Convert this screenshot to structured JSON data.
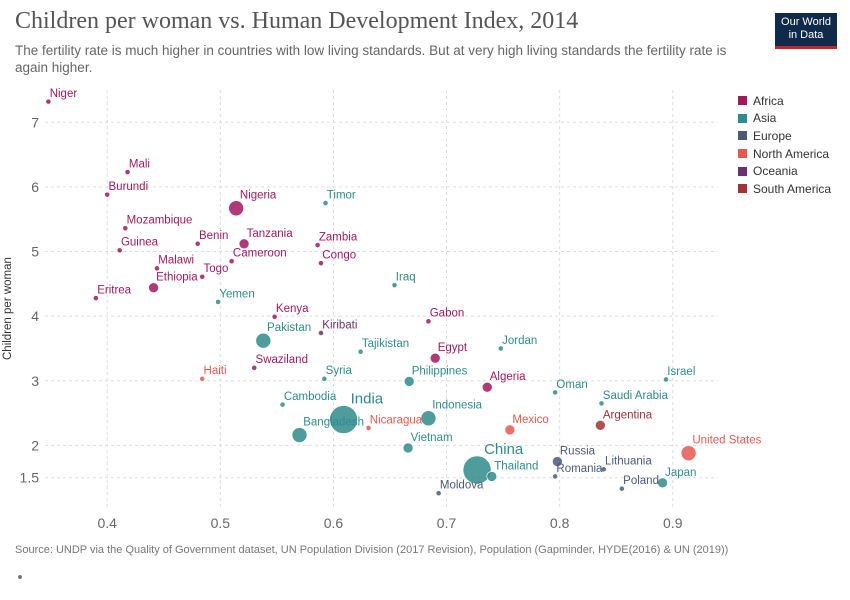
{
  "header": {
    "title": "Children per woman vs. Human Development Index, 2014",
    "subtitle": "The fertility rate is much higher in countries with low living standards. But at very high living standards the fertility rate is again higher.",
    "logo_line1": "Our World",
    "logo_line2": "in Data"
  },
  "footer": {
    "source": "Source: UNDP via the Quality of Government dataset, UN Population Division (2017 Revision), Population (Gapminder, HYDE(2016) & UN (2019))"
  },
  "colors": {
    "Africa": "#a2185f",
    "Asia": "#2f8b8b",
    "Europe": "#4c5a7a",
    "North America": "#e8574f",
    "Oceania": "#6d2f6e",
    "South America": "#a23236"
  },
  "chart_data": {
    "type": "scatter",
    "title": "Children per woman vs. Human Development Index, 2014",
    "ylabel": "Children per woman",
    "xlabel": "",
    "xlim": [
      0.345,
      0.94
    ],
    "ylim": [
      1.0,
      7.5
    ],
    "x_ticks": [
      "0.4",
      "0.5",
      "0.6",
      "0.7",
      "0.8",
      "0.9"
    ],
    "y_ticks": [
      "1.5",
      "2",
      "3",
      "4",
      "5",
      "6",
      "7"
    ],
    "legend": [
      "Africa",
      "Asia",
      "Europe",
      "North America",
      "Oceania",
      "South America"
    ],
    "legend_position": "right",
    "grid": true,
    "labeled_points": [
      {
        "name": "Niger",
        "x": 0.348,
        "y": 7.32,
        "region": "Africa",
        "size": "small"
      },
      {
        "name": "Mali",
        "x": 0.418,
        "y": 6.23,
        "region": "Africa",
        "size": "small"
      },
      {
        "name": "Burundi",
        "x": 0.4,
        "y": 5.88,
        "region": "Africa",
        "size": "small"
      },
      {
        "name": "Nigeria",
        "x": 0.514,
        "y": 5.67,
        "region": "Africa",
        "size": "large"
      },
      {
        "name": "Timor",
        "x": 0.593,
        "y": 5.75,
        "region": "Asia",
        "size": "small"
      },
      {
        "name": "Mozambique",
        "x": 0.416,
        "y": 5.36,
        "region": "Africa",
        "size": "small"
      },
      {
        "name": "Tanzania",
        "x": 0.521,
        "y": 5.12,
        "region": "Africa",
        "size": "medium"
      },
      {
        "name": "Zambia",
        "x": 0.586,
        "y": 5.1,
        "region": "Africa",
        "size": "small"
      },
      {
        "name": "Benin",
        "x": 0.48,
        "y": 5.12,
        "region": "Africa",
        "size": "small"
      },
      {
        "name": "Guinea",
        "x": 0.411,
        "y": 5.02,
        "region": "Africa",
        "size": "small"
      },
      {
        "name": "Cameroon",
        "x": 0.51,
        "y": 4.85,
        "region": "Africa",
        "size": "small"
      },
      {
        "name": "Congo",
        "x": 0.589,
        "y": 4.82,
        "region": "Africa",
        "size": "small"
      },
      {
        "name": "Malawi",
        "x": 0.444,
        "y": 4.74,
        "region": "Africa",
        "size": "small"
      },
      {
        "name": "Togo",
        "x": 0.484,
        "y": 4.61,
        "region": "Africa",
        "size": "small"
      },
      {
        "name": "Ethiopia",
        "x": 0.441,
        "y": 4.44,
        "region": "Africa",
        "size": "medium"
      },
      {
        "name": "Iraq",
        "x": 0.654,
        "y": 4.48,
        "region": "Asia",
        "size": "small"
      },
      {
        "name": "Eritrea",
        "x": 0.39,
        "y": 4.28,
        "region": "Africa",
        "size": "small"
      },
      {
        "name": "Yemen",
        "x": 0.498,
        "y": 4.22,
        "region": "Asia",
        "size": "small"
      },
      {
        "name": "Kenya",
        "x": 0.548,
        "y": 3.99,
        "region": "Africa",
        "size": "small"
      },
      {
        "name": "Gabon",
        "x": 0.684,
        "y": 3.92,
        "region": "Africa",
        "size": "small"
      },
      {
        "name": "Kiribati",
        "x": 0.589,
        "y": 3.74,
        "region": "Oceania",
        "size": "small"
      },
      {
        "name": "Pakistan",
        "x": 0.538,
        "y": 3.62,
        "region": "Asia",
        "size": "large"
      },
      {
        "name": "Jordan",
        "x": 0.748,
        "y": 3.5,
        "region": "Asia",
        "size": "small"
      },
      {
        "name": "Tajikistan",
        "x": 0.624,
        "y": 3.45,
        "region": "Asia",
        "size": "small"
      },
      {
        "name": "Egypt",
        "x": 0.69,
        "y": 3.35,
        "region": "Africa",
        "size": "medium"
      },
      {
        "name": "Haiti",
        "x": 0.484,
        "y": 3.03,
        "region": "North America",
        "size": "small"
      },
      {
        "name": "Swaziland",
        "x": 0.53,
        "y": 3.2,
        "region": "Africa",
        "size": "small"
      },
      {
        "name": "Syria",
        "x": 0.592,
        "y": 3.03,
        "region": "Asia",
        "size": "small"
      },
      {
        "name": "Philippines",
        "x": 0.667,
        "y": 2.99,
        "region": "Asia",
        "size": "medium"
      },
      {
        "name": "Algeria",
        "x": 0.736,
        "y": 2.9,
        "region": "Africa",
        "size": "medium"
      },
      {
        "name": "Israel",
        "x": 0.894,
        "y": 3.02,
        "region": "Asia",
        "size": "small"
      },
      {
        "name": "Oman",
        "x": 0.796,
        "y": 2.82,
        "region": "Asia",
        "size": "small"
      },
      {
        "name": "Cambodia",
        "x": 0.555,
        "y": 2.63,
        "region": "Asia",
        "size": "small"
      },
      {
        "name": "India",
        "x": 0.609,
        "y": 2.4,
        "region": "Asia",
        "size": "xlarge"
      },
      {
        "name": "Saudi Arabia",
        "x": 0.837,
        "y": 2.65,
        "region": "Asia",
        "size": "small"
      },
      {
        "name": "Indonesia",
        "x": 0.684,
        "y": 2.42,
        "region": "Asia",
        "size": "large"
      },
      {
        "name": "Argentina",
        "x": 0.836,
        "y": 2.31,
        "region": "South America",
        "size": "medium"
      },
      {
        "name": "Mexico",
        "x": 0.756,
        "y": 2.24,
        "region": "North America",
        "size": "medium"
      },
      {
        "name": "Bangladesh",
        "x": 0.57,
        "y": 2.16,
        "region": "Asia",
        "size": "large"
      },
      {
        "name": "Nicaragua",
        "x": 0.631,
        "y": 2.27,
        "region": "North America",
        "size": "small"
      },
      {
        "name": "Vietnam",
        "x": 0.666,
        "y": 1.96,
        "region": "Asia",
        "size": "medium"
      },
      {
        "name": "United States",
        "x": 0.914,
        "y": 1.88,
        "region": "North America",
        "size": "large"
      },
      {
        "name": "China",
        "x": 0.727,
        "y": 1.62,
        "region": "Asia",
        "size": "xlarge"
      },
      {
        "name": "Russia",
        "x": 0.798,
        "y": 1.75,
        "region": "Europe",
        "size": "medium"
      },
      {
        "name": "Thailand",
        "x": 0.74,
        "y": 1.52,
        "region": "Asia",
        "size": "medium"
      },
      {
        "name": "Lithuania",
        "x": 0.839,
        "y": 1.63,
        "region": "Europe",
        "size": "small"
      },
      {
        "name": "Romania",
        "x": 0.796,
        "y": 1.52,
        "region": "Europe",
        "size": "small"
      },
      {
        "name": "Japan",
        "x": 0.891,
        "y": 1.42,
        "region": "Asia",
        "size": "medium"
      },
      {
        "name": "Poland",
        "x": 0.855,
        "y": 1.33,
        "region": "Europe",
        "size": "small"
      },
      {
        "name": "Moldova",
        "x": 0.693,
        "y": 1.26,
        "region": "Europe",
        "size": "small"
      }
    ]
  }
}
